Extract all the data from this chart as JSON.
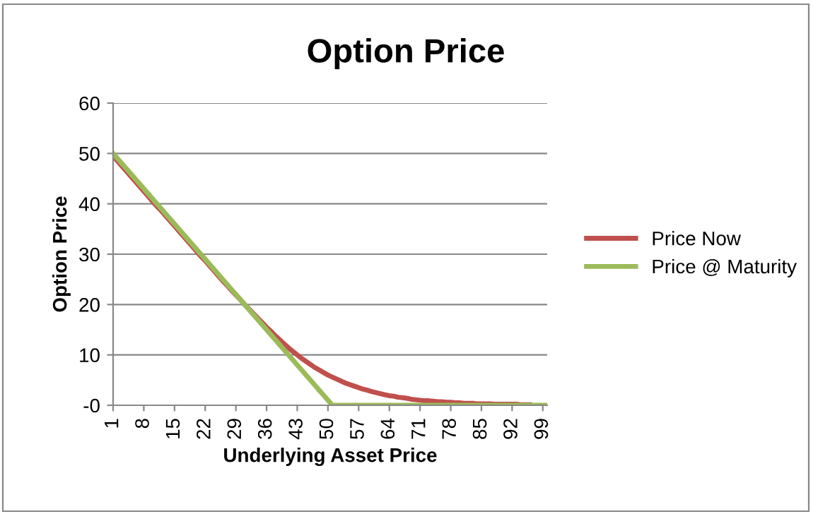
{
  "chart_data": {
    "type": "line",
    "title": "Option Price",
    "xlabel": "Underlying Asset Price",
    "ylabel": "Option Price",
    "categories": [
      "1",
      null,
      null,
      null,
      null,
      null,
      null,
      "8",
      null,
      null,
      null,
      null,
      null,
      null,
      "15",
      null,
      null,
      null,
      null,
      null,
      null,
      "22",
      null,
      null,
      null,
      null,
      null,
      null,
      "29",
      null,
      null,
      null,
      null,
      null,
      null,
      "36",
      null,
      null,
      null,
      null,
      null,
      null,
      "43",
      null,
      null,
      null,
      null,
      null,
      null,
      "50",
      null,
      null,
      null,
      null,
      null,
      null,
      "57",
      null,
      null,
      null,
      null,
      null,
      null,
      "64",
      null,
      null,
      null,
      null,
      null,
      null,
      "71",
      null,
      null,
      null,
      null,
      null,
      null,
      "78",
      null,
      null,
      null,
      null,
      null,
      null,
      "85",
      null,
      null,
      null,
      null,
      null,
      null,
      "92",
      null,
      null,
      null,
      null,
      null,
      null,
      "99",
      null
    ],
    "series": [
      {
        "name": "Price Now",
        "color": "#c0504d",
        "values": [
          49.5,
          48.5,
          47.5,
          46.5,
          45.5,
          44.5,
          43.5,
          42.5,
          41.5,
          40.5,
          39.5,
          38.6,
          37.6,
          36.6,
          35.6,
          34.6,
          33.6,
          32.6,
          31.6,
          30.6,
          29.6,
          28.7,
          27.7,
          26.7,
          25.7,
          24.7,
          23.8,
          22.8,
          21.9,
          21.0,
          20.0,
          19.1,
          18.2,
          17.3,
          16.4,
          15.5,
          14.7,
          13.8,
          13.0,
          12.2,
          11.4,
          10.7,
          10.0,
          9.3,
          8.7,
          8.1,
          7.5,
          7.0,
          6.5,
          6.0,
          5.6,
          5.2,
          4.8,
          4.4,
          4.1,
          3.8,
          3.5,
          3.2,
          3.0,
          2.7,
          2.5,
          2.3,
          2.1,
          1.9,
          1.8,
          1.6,
          1.5,
          1.4,
          1.2,
          1.1,
          1.0,
          0.9,
          0.9,
          0.8,
          0.7,
          0.7,
          0.6,
          0.6,
          0.5,
          0.5,
          0.4,
          0.4,
          0.4,
          0.3,
          0.3,
          0.3,
          0.3,
          0.2,
          0.2,
          0.2,
          0.2,
          0.2,
          0.2,
          0.1,
          0.1,
          0.1,
          null,
          null,
          null,
          null
        ]
      },
      {
        "name": "Price @ Maturity",
        "color": "#9bbb59",
        "values": [
          50,
          49,
          48,
          47,
          46,
          45,
          44,
          43,
          42,
          41,
          40,
          39,
          38,
          37,
          36,
          35,
          34,
          33,
          32,
          31,
          30,
          29,
          28,
          27,
          26,
          25,
          24,
          23,
          22,
          21,
          20,
          19,
          18,
          17,
          16,
          15,
          14,
          13,
          12,
          11,
          10,
          9,
          8,
          7,
          6,
          5,
          4,
          3,
          2,
          1,
          0,
          0,
          0,
          0,
          0,
          0,
          0,
          0,
          0,
          0,
          0,
          0,
          0,
          0,
          0,
          0,
          0,
          0,
          0,
          0,
          0,
          0,
          0,
          0,
          0,
          0,
          0,
          0,
          0,
          0,
          0,
          0,
          0,
          0,
          0,
          0,
          0,
          0,
          0,
          0,
          0,
          0,
          0,
          0,
          0,
          0,
          0,
          0,
          0,
          0
        ]
      }
    ],
    "ylim": [
      0,
      60
    ],
    "yticks": [
      {
        "value": 0,
        "label": "-0"
      },
      10,
      20,
      30,
      40,
      50,
      60
    ],
    "grid": "y",
    "legend": "right",
    "marker": "none",
    "line_style": "solid"
  }
}
